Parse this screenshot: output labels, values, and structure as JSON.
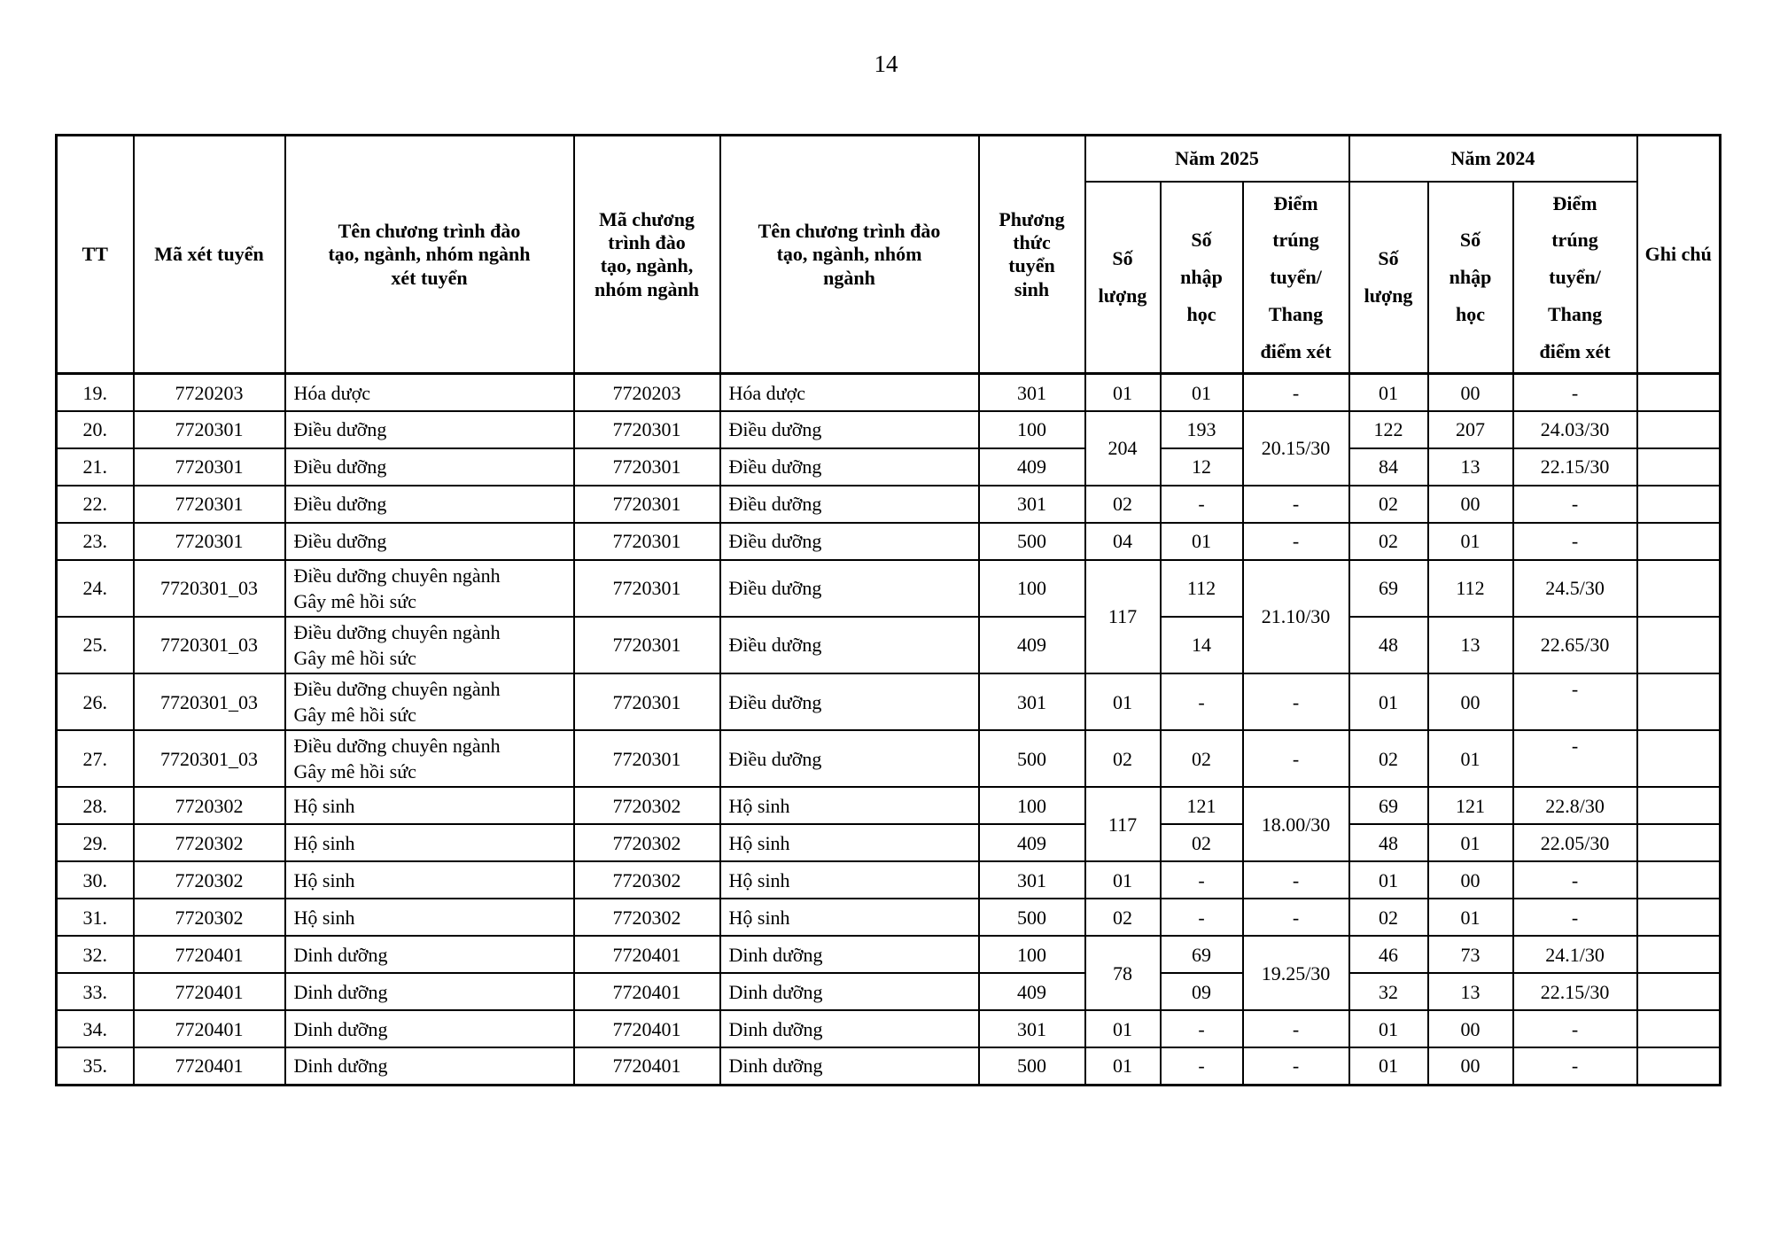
{
  "page_number": "14",
  "table": {
    "header": {
      "tt": "TT",
      "ma_xet_tuyen": "Mã xét tuyển",
      "ten_ct_xet_tuyen": "Tên chương trình đào\ntạo, ngành, nhóm ngành\nxét tuyển",
      "ma_ct": "Mã chương\ntrình đào\ntạo, ngành,\nnhóm ngành",
      "ten_ct": "Tên chương trình đào\ntạo, ngành, nhóm\nngành",
      "phuong_thuc": "Phương\nthức\ntuyển\nsinh",
      "nam_2025": "Năm 2025",
      "nam_2024": "Năm 2024",
      "so_luong": "Số\nlượng",
      "so_nhap_hoc": "Số\nnhập\nhọc",
      "diem_trung_tuyen": "Điểm\ntrúng\ntuyển/\nThang\nđiểm xét",
      "ghi_chu": "Ghi chú"
    },
    "rows": [
      [
        "19.",
        "7720203",
        "Hóa dược",
        "7720203",
        "Hóa dược",
        "301",
        "01",
        "01",
        "-",
        "01",
        "00",
        "-",
        ""
      ],
      [
        "20.",
        "7720301",
        "Điều dưỡng",
        "7720301",
        "Điều dưỡng",
        "100",
        {
          "text": "204",
          "rowspan": 2
        },
        "193",
        {
          "text": "20.15/30",
          "rowspan": 2
        },
        "122",
        "207",
        "24.03/30",
        ""
      ],
      [
        "21.",
        "7720301",
        "Điều dưỡng",
        "7720301",
        "Điều dưỡng",
        "409",
        "12",
        "84",
        "13",
        "22.15/30",
        ""
      ],
      [
        "22.",
        "7720301",
        "Điều dưỡng",
        "7720301",
        "Điều dưỡng",
        "301",
        "02",
        "-",
        "-",
        "02",
        "00",
        "-",
        ""
      ],
      [
        "23.",
        "7720301",
        "Điều dưỡng",
        "7720301",
        "Điều dưỡng",
        "500",
        "04",
        "01",
        "-",
        "02",
        "01",
        "-",
        ""
      ],
      [
        "24.",
        "7720301_03",
        "Điều dưỡng chuyên ngành\nGây mê hồi sức",
        "7720301",
        "Điều dưỡng",
        "100",
        {
          "text": "117",
          "rowspan": 2
        },
        "112",
        {
          "text": "21.10/30",
          "rowspan": 2
        },
        "69",
        "112",
        "24.5/30",
        ""
      ],
      [
        "25.",
        "7720301_03",
        "Điều dưỡng chuyên ngành\nGây mê hồi sức",
        "7720301",
        "Điều dưỡng",
        "409",
        "14",
        "48",
        "13",
        "22.65/30",
        ""
      ],
      [
        "26.",
        "7720301_03",
        "Điều dưỡng chuyên ngành\nGây mê hồi sức",
        "7720301",
        "Điều dưỡng",
        "301",
        "01",
        "-",
        "-",
        "01",
        "00",
        {
          "text": "-",
          "valign": "top"
        },
        ""
      ],
      [
        "27.",
        "7720301_03",
        "Điều dưỡng chuyên ngành\nGây mê hồi sức",
        "7720301",
        "Điều dưỡng",
        "500",
        "02",
        "02",
        "-",
        "02",
        "01",
        {
          "text": "-",
          "valign": "top"
        },
        ""
      ],
      [
        "28.",
        "7720302",
        "Hộ sinh",
        "7720302",
        "Hộ sinh",
        "100",
        {
          "text": "117",
          "rowspan": 2
        },
        "121",
        {
          "text": "18.00/30",
          "rowspan": 2
        },
        "69",
        "121",
        "22.8/30",
        ""
      ],
      [
        "29.",
        "7720302",
        "Hộ sinh",
        "7720302",
        "Hộ sinh",
        "409",
        "02",
        "48",
        "01",
        "22.05/30",
        ""
      ],
      [
        "30.",
        "7720302",
        "Hộ sinh",
        "7720302",
        "Hộ sinh",
        "301",
        "01",
        "-",
        "-",
        "01",
        "00",
        "-",
        ""
      ],
      [
        "31.",
        "7720302",
        "Hộ sinh",
        "7720302",
        "Hộ sinh",
        "500",
        "02",
        "-",
        "-",
        "02",
        "01",
        "-",
        ""
      ],
      [
        "32.",
        "7720401",
        "Dinh dưỡng",
        "7720401",
        "Dinh dưỡng",
        "100",
        {
          "text": "78",
          "rowspan": 2
        },
        "69",
        {
          "text": "19.25/30",
          "rowspan": 2
        },
        "46",
        "73",
        "24.1/30",
        ""
      ],
      [
        "33.",
        "7720401",
        "Dinh dưỡng",
        "7720401",
        "Dinh dưỡng",
        "409",
        "09",
        "32",
        "13",
        "22.15/30",
        ""
      ],
      [
        "34.",
        "7720401",
        "Dinh dưỡng",
        "7720401",
        "Dinh dưỡng",
        "301",
        "01",
        "-",
        "-",
        "01",
        "00",
        "-",
        ""
      ],
      [
        "35.",
        "7720401",
        "Dinh dưỡng",
        "7720401",
        "Dinh dưỡng",
        "500",
        "01",
        "-",
        "-",
        "01",
        "00",
        "-",
        ""
      ]
    ]
  }
}
